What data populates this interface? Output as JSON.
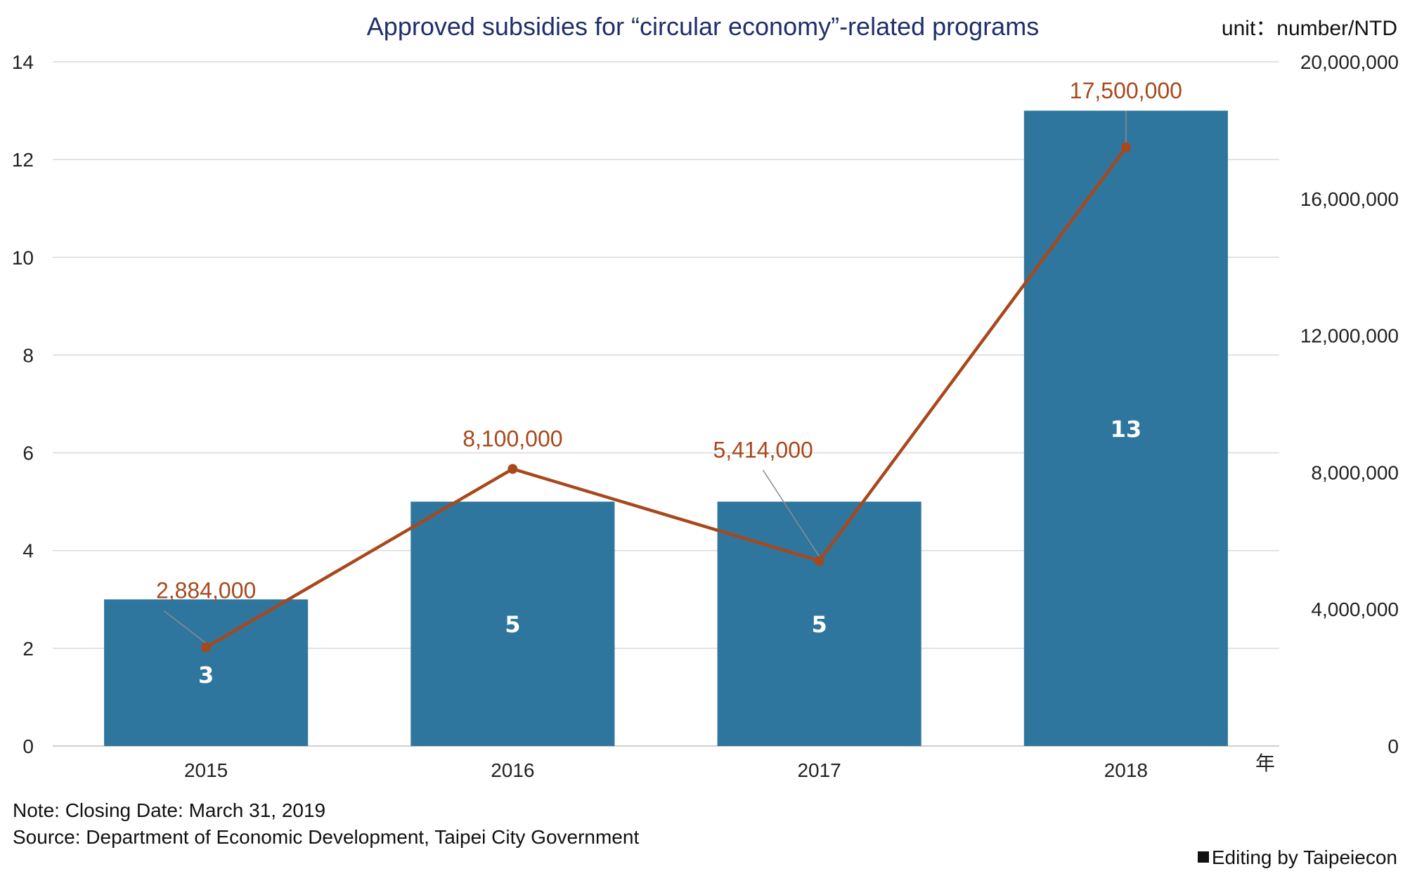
{
  "chart_data": {
    "type": "bar",
    "title": "Approved subsidies for “circular economy”-related programs",
    "unit_label": "unit：number/NTD",
    "x_axis_unit": "年",
    "categories": [
      "2015",
      "2016",
      "2017",
      "2018"
    ],
    "y_left_ticks": [
      "0",
      "2",
      "4",
      "6",
      "8",
      "10",
      "12",
      "14"
    ],
    "y_right_ticks": [
      "0",
      "4,000,000",
      "8,000,000",
      "12,000,000",
      "16,000,000",
      "20,000,000"
    ],
    "ylim_left": [
      0,
      14
    ],
    "ylim_right": [
      0,
      20000000
    ],
    "grid": true,
    "series": [
      {
        "type": "bar",
        "axis": "left",
        "values": [
          3,
          5,
          5,
          13
        ],
        "labels": [
          "3",
          "5",
          "5",
          "13"
        ],
        "color": "#2e769e",
        "label_color": "#ffffff"
      },
      {
        "type": "line",
        "axis": "right",
        "values": [
          2884000,
          8100000,
          5414000,
          17500000
        ],
        "labels": [
          "2,884,000",
          "8,100,000",
          "5,414,000",
          "17,500,000"
        ],
        "color": "#a8481c"
      }
    ]
  },
  "footer": {
    "note": "Note: Closing Date: March 31, 2019",
    "source": "Source: Department of Economic Development, Taipei City Government",
    "credit": "Editing by Taipeiecon"
  }
}
